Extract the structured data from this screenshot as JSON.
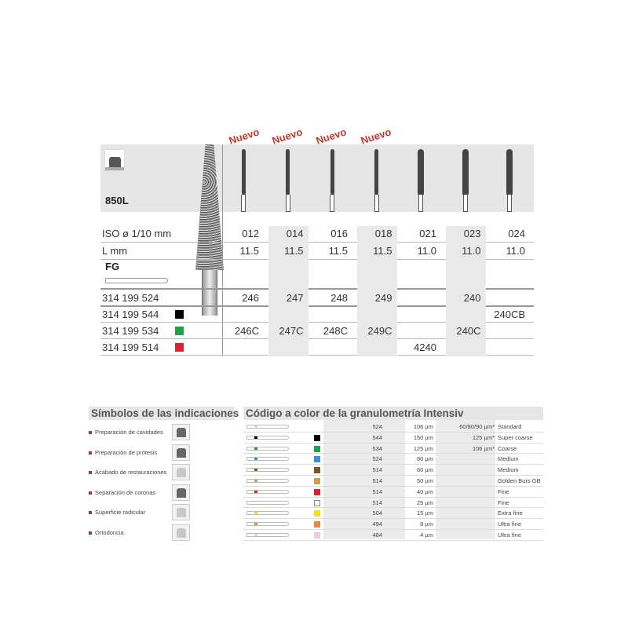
{
  "product": {
    "model": "850L",
    "system": "FG",
    "new_label": "Nuevo",
    "row_labels": {
      "iso": "ISO ø 1/10 mm",
      "length": "L mm"
    },
    "columns": [
      {
        "iso": "012",
        "length": "11.5",
        "is_new": true,
        "codes": [
          "246",
          "",
          "246C",
          ""
        ]
      },
      {
        "iso": "014",
        "length": "11.5",
        "is_new": true,
        "codes": [
          "247",
          "",
          "247C",
          ""
        ]
      },
      {
        "iso": "016",
        "length": "11.5",
        "is_new": true,
        "codes": [
          "248",
          "",
          "248C",
          ""
        ]
      },
      {
        "iso": "018",
        "length": "11.5",
        "is_new": true,
        "codes": [
          "249",
          "",
          "249C",
          ""
        ]
      },
      {
        "iso": "021",
        "length": "11.0",
        "is_new": false,
        "codes": [
          "",
          "",
          "",
          "4240"
        ]
      },
      {
        "iso": "023",
        "length": "11.0",
        "is_new": false,
        "codes": [
          "240",
          "",
          "240C",
          ""
        ]
      },
      {
        "iso": "024",
        "length": "11.0",
        "is_new": false,
        "codes": [
          "",
          "240CB",
          "",
          ""
        ]
      }
    ],
    "ref_rows": [
      {
        "ref": "314 199 524",
        "color": null
      },
      {
        "ref": "314 199 544",
        "color": "#000000"
      },
      {
        "ref": "314 199 534",
        "color": "#22a34a"
      },
      {
        "ref": "314 199 514",
        "color": "#e02030"
      }
    ]
  },
  "indications": {
    "title": "Símbolos de las indicaciones",
    "items": [
      {
        "label": "Preparación de cavidades",
        "icon": "cavity-prep-icon"
      },
      {
        "label": "Preparación de prótesis",
        "icon": "prosthesis-prep-icon"
      },
      {
        "label": "Acabado de restauraciones",
        "icon": "restoration-finish-icon"
      },
      {
        "label": "Separación de coronas",
        "icon": "crown-separation-icon"
      },
      {
        "label": "Superficie radicular",
        "icon": "root-surface-icon"
      },
      {
        "label": "Ortodoncia",
        "icon": "orthodontics-icon"
      }
    ]
  },
  "grit": {
    "title": "Código a color de la granulometría Intensiv",
    "rows": [
      {
        "color": null,
        "code": "524",
        "size": "106 µm",
        "alt": "60/80/90 µm*",
        "name": "Standard"
      },
      {
        "color": "#000000",
        "code": "544",
        "size": "150 µm",
        "alt": "125 µm*",
        "name": "Super coarse"
      },
      {
        "color": "#22a34a",
        "code": "534",
        "size": "125 µm",
        "alt": "106 µm*",
        "name": "Coarse"
      },
      {
        "color": "#3a8fd8",
        "code": "524",
        "size": "80 µm",
        "alt": "",
        "name": "Medium"
      },
      {
        "color": "#7a5530",
        "code": "514",
        "size": "60 µm",
        "alt": "",
        "name": "Medium"
      },
      {
        "color": "#c8a050",
        "code": "514",
        "size": "50 µm",
        "alt": "",
        "name": "Golden Burs GB"
      },
      {
        "color": "#d82030",
        "code": "514",
        "size": "40 µm",
        "alt": "",
        "name": "Fine"
      },
      {
        "color": "#ffffff",
        "code": "514",
        "size": "25 µm",
        "alt": "",
        "name": "Fine"
      },
      {
        "color": "#f2e020",
        "code": "504",
        "size": "15 µm",
        "alt": "",
        "name": "Extra fine"
      },
      {
        "color": "#e88a40",
        "code": "494",
        "size": "8 µm",
        "alt": "",
        "name": "Ultra fine"
      },
      {
        "color": "#f2c8e0",
        "code": "484",
        "size": "4 µm",
        "alt": "",
        "name": "Ultra fine"
      }
    ]
  }
}
